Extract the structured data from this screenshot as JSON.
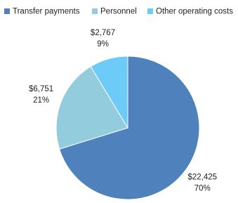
{
  "chart_data": {
    "type": "pie",
    "categories": [
      "Transfer payments",
      "Personnel",
      "Other operating costs"
    ],
    "values": [
      22425,
      6751,
      2767
    ],
    "value_labels": [
      "$22,425",
      "$6,751",
      "$2,767"
    ],
    "percent_labels": [
      "70%",
      "21%",
      "9%"
    ],
    "colors": [
      "#4f81bd",
      "#93cddd",
      "#6ccbf7"
    ],
    "legend": "top"
  }
}
